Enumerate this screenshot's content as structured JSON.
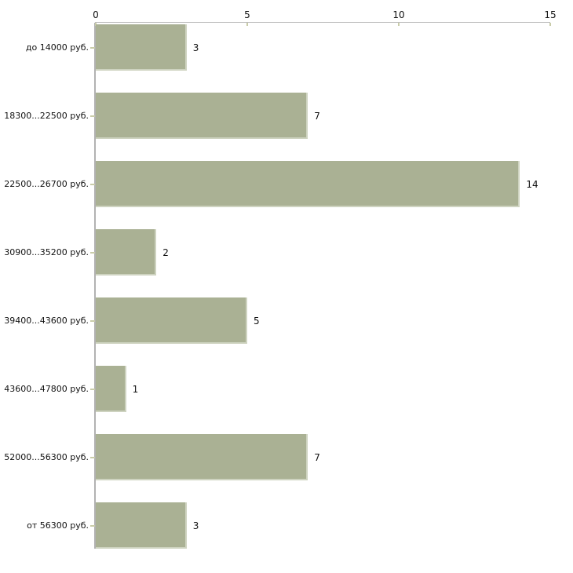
{
  "chart_data": {
    "type": "bar",
    "orientation": "horizontal",
    "title": "",
    "xlabel": "",
    "ylabel": "",
    "categories": [
      "до 14000 руб.",
      "18300...22500 руб.",
      "22500...26700 руб.",
      "30900...35200 руб.",
      "39400...43600 руб.",
      "43600...47800 руб.",
      "52000...56300 руб.",
      "от 56300 руб."
    ],
    "values": [
      3,
      7,
      14,
      2,
      5,
      1,
      7,
      3
    ],
    "value_labels": [
      "3",
      "7",
      "14",
      "2",
      "5",
      "1",
      "7",
      "3"
    ],
    "xlim": [
      0,
      15
    ],
    "x_ticks": [
      0,
      5,
      10,
      15
    ],
    "x_tick_labels": [
      "0",
      "5",
      "10",
      "15"
    ],
    "grid": false,
    "legend": false,
    "axis_position": "top",
    "colors": {
      "bar_fill": "#aab194",
      "bar_edge": "#ced3c0",
      "x_axis_line": "#bdbdbd",
      "y_axis_line": "#b2b2b2",
      "tick_mark": "#c9cca9",
      "text": "#111111",
      "background": "#ffffff"
    }
  }
}
